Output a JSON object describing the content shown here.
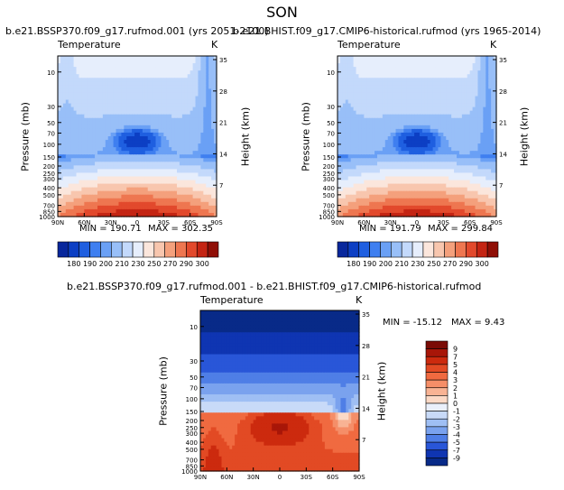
{
  "figure": {
    "title": "SON"
  },
  "chart_data": [
    {
      "type": "heatmap",
      "id": "left",
      "title": "b.e21.BSSP370.f09_g17.rufmod.001 (yrs 2051-2100)",
      "variable": "Temperature",
      "units": "K",
      "xlabel": "",
      "ylabel": "Pressure (mb)",
      "ylabel_right": "Height (km)",
      "x_ticks": [
        "90N",
        "60N",
        "30N",
        "0",
        "30S",
        "60S",
        "90S"
      ],
      "y_ticks": [
        "10",
        "30",
        "50",
        "70",
        "100",
        "150",
        "200",
        "250",
        "300",
        "400",
        "500",
        "700",
        "850",
        "1000"
      ],
      "y_ticks_right": [
        "35",
        "28",
        "21",
        "14",
        "7"
      ],
      "min_label": "MIN = 190.71",
      "max_label": "MAX = 302.35",
      "min": 190.71,
      "max": 302.35,
      "colorbar_labels": [
        "180",
        "190",
        "200",
        "210",
        "230",
        "250",
        "270",
        "290",
        "300"
      ]
    },
    {
      "type": "heatmap",
      "id": "right",
      "title": "b.e21.BHIST.f09_g17.CMIP6-historical.rufmod (yrs 1965-2014)",
      "variable": "Temperature",
      "units": "K",
      "xlabel": "",
      "ylabel": "Pressure (mb)",
      "ylabel_right": "Height (km)",
      "x_ticks": [
        "90N",
        "60N",
        "30N",
        "0",
        "30S",
        "60S",
        "90S"
      ],
      "y_ticks": [
        "10",
        "30",
        "50",
        "70",
        "100",
        "150",
        "200",
        "250",
        "300",
        "400",
        "500",
        "700",
        "850",
        "1000"
      ],
      "y_ticks_right": [
        "35",
        "28",
        "21",
        "14",
        "7"
      ],
      "min_label": "MIN = 191.79",
      "max_label": "MAX = 299.84",
      "min": 191.79,
      "max": 299.84,
      "colorbar_labels": [
        "180",
        "190",
        "200",
        "210",
        "230",
        "250",
        "270",
        "290",
        "300"
      ]
    },
    {
      "type": "heatmap",
      "id": "diff",
      "title": "b.e21.BSSP370.f09_g17.rufmod.001 - b.e21.BHIST.f09_g17.CMIP6-historical.rufmod",
      "variable": "Temperature",
      "units": "K",
      "xlabel": "",
      "ylabel": "Pressure (mb)",
      "ylabel_right": "Height (km)",
      "x_ticks": [
        "90N",
        "60N",
        "30N",
        "0",
        "30S",
        "60S",
        "90S"
      ],
      "y_ticks": [
        "10",
        "30",
        "50",
        "70",
        "100",
        "150",
        "200",
        "250",
        "300",
        "400",
        "500",
        "700",
        "850",
        "1000"
      ],
      "y_ticks_right": [
        "35",
        "28",
        "21",
        "14",
        "7"
      ],
      "min_label": "MIN = -15.12",
      "max_label": "MAX =   9.43",
      "min": -15.12,
      "max": 9.43,
      "colorbar_labels": [
        "9",
        "7",
        "5",
        "4",
        "3",
        "2",
        "1",
        "0",
        "-1",
        "-2",
        "-3",
        "-4",
        "-5",
        "-7",
        "-9"
      ]
    }
  ],
  "palettes": {
    "abs": [
      "#08279c",
      "#0c3fc4",
      "#1f5fe0",
      "#3f7ff0",
      "#6aa0f5",
      "#98bff8",
      "#c3d9fb",
      "#e6eefc",
      "#fbe6dc",
      "#f8c6ae",
      "#f4a07c",
      "#ee7650",
      "#e2492c",
      "#c42413",
      "#8f0e06"
    ],
    "diff": [
      "#7a0b05",
      "#a81608",
      "#cc2a0e",
      "#e24a24",
      "#f06a40",
      "#f58e68",
      "#f8b394",
      "#fbd9c6",
      "#eaf0fb",
      "#c8daf8",
      "#9fbff4",
      "#7aa2ee",
      "#4f7ee6",
      "#2956d8",
      "#0f35b2",
      "#082a88"
    ]
  }
}
